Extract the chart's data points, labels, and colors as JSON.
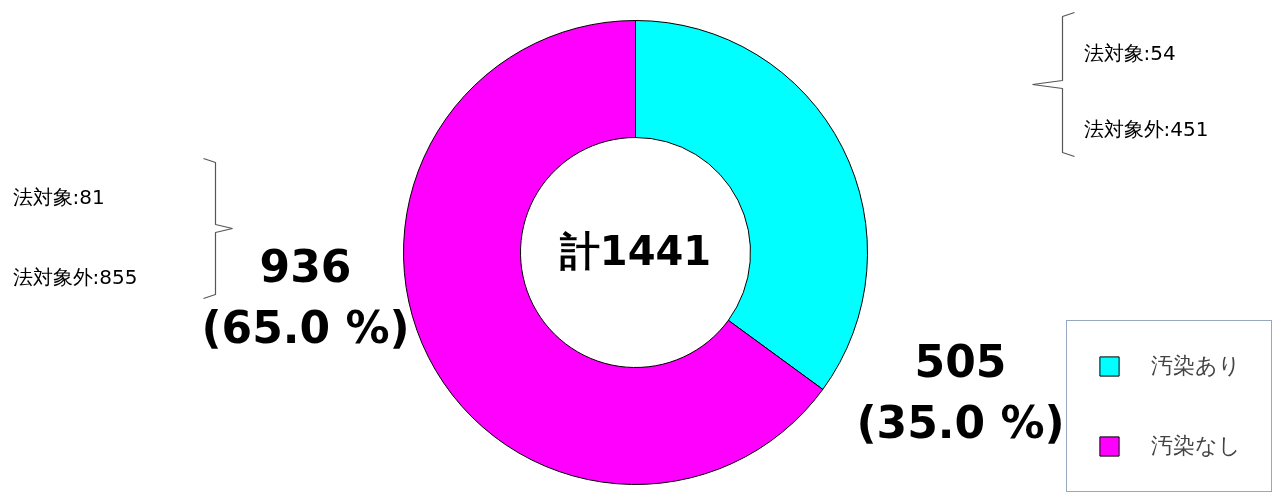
{
  "chart_data": {
    "type": "donut",
    "categories": [
      "汚染あり",
      "汚染なし"
    ],
    "values": [
      505,
      936
    ],
    "colors": [
      "#00ffff",
      "#ff00ff"
    ],
    "value_labels": [
      "505\n(35.0 %)",
      "936\n(65.0 %)"
    ],
    "annotations": [
      "計1441",
      "法対象:54",
      "法対象外:451",
      "法対象:81",
      "法対象外:855"
    ],
    "legend": "bottom right"
  }
}
